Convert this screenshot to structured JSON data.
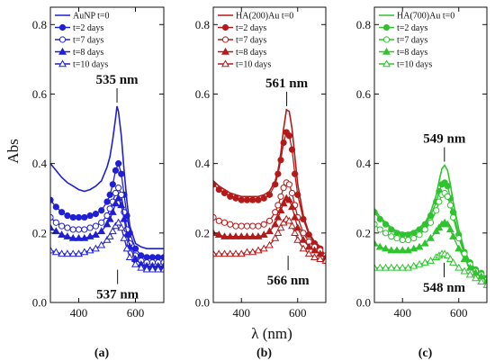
{
  "figure": {
    "ylabel": "Abs",
    "xlabel": "λ (nm)"
  },
  "chart_data": [
    {
      "type": "line",
      "panel_label": "(a)",
      "xlim": [
        300,
        700
      ],
      "ylim": [
        0.0,
        0.85
      ],
      "xticks": [
        400,
        600
      ],
      "yticks": [
        0.0,
        0.2,
        0.4,
        0.6,
        0.8
      ],
      "color": "#1f1fd6",
      "legend_position": "top-left",
      "annotations": [
        {
          "text": "535 nm",
          "x": 535,
          "y": 0.565,
          "position": "above"
        },
        {
          "text": "537 nm",
          "x": 537,
          "y": 0.11,
          "position": "below"
        }
      ],
      "series": [
        {
          "name": "AuNP t=0",
          "marker": "none",
          "x": [
            300,
            320,
            340,
            360,
            380,
            400,
            420,
            440,
            460,
            480,
            500,
            510,
            520,
            530,
            535,
            540,
            550,
            560,
            570,
            580,
            600,
            620,
            640,
            660,
            680,
            700
          ],
          "y": [
            0.4,
            0.38,
            0.36,
            0.345,
            0.335,
            0.325,
            0.32,
            0.325,
            0.335,
            0.35,
            0.39,
            0.42,
            0.47,
            0.53,
            0.565,
            0.55,
            0.48,
            0.38,
            0.29,
            0.22,
            0.17,
            0.16,
            0.155,
            0.155,
            0.155,
            0.155
          ]
        },
        {
          "name": "t=2 days",
          "marker": "circle-filled",
          "x": [
            300,
            320,
            340,
            360,
            380,
            400,
            420,
            440,
            460,
            480,
            500,
            510,
            520,
            530,
            540,
            550,
            560,
            570,
            580,
            600,
            620,
            640,
            660,
            680,
            700
          ],
          "y": [
            0.295,
            0.275,
            0.26,
            0.25,
            0.245,
            0.245,
            0.245,
            0.25,
            0.255,
            0.265,
            0.29,
            0.31,
            0.34,
            0.38,
            0.4,
            0.37,
            0.31,
            0.25,
            0.2,
            0.155,
            0.135,
            0.13,
            0.13,
            0.13,
            0.13
          ]
        },
        {
          "name": "t=7 days",
          "marker": "circle-open",
          "x": [
            300,
            320,
            340,
            360,
            380,
            400,
            420,
            440,
            460,
            480,
            500,
            510,
            520,
            530,
            540,
            550,
            560,
            570,
            580,
            600,
            620,
            640,
            660,
            680,
            700
          ],
          "y": [
            0.245,
            0.23,
            0.22,
            0.215,
            0.21,
            0.21,
            0.21,
            0.215,
            0.22,
            0.23,
            0.25,
            0.27,
            0.29,
            0.315,
            0.33,
            0.31,
            0.26,
            0.21,
            0.17,
            0.135,
            0.12,
            0.115,
            0.115,
            0.115,
            0.115
          ]
        },
        {
          "name": "t=8 days",
          "marker": "triangle-filled",
          "x": [
            300,
            320,
            340,
            360,
            380,
            400,
            420,
            440,
            460,
            480,
            500,
            510,
            520,
            530,
            540,
            550,
            560,
            570,
            580,
            600,
            620,
            640,
            660,
            680,
            700
          ],
          "y": [
            0.215,
            0.205,
            0.195,
            0.19,
            0.185,
            0.185,
            0.185,
            0.19,
            0.195,
            0.205,
            0.225,
            0.24,
            0.26,
            0.285,
            0.3,
            0.28,
            0.24,
            0.195,
            0.16,
            0.125,
            0.11,
            0.105,
            0.105,
            0.105,
            0.105
          ]
        },
        {
          "name": "t=10 days",
          "marker": "triangle-open",
          "x": [
            300,
            320,
            340,
            360,
            380,
            400,
            420,
            440,
            460,
            480,
            500,
            510,
            520,
            530,
            540,
            550,
            560,
            570,
            580,
            600,
            620,
            640,
            660,
            680,
            700
          ],
          "y": [
            0.15,
            0.145,
            0.14,
            0.14,
            0.14,
            0.14,
            0.145,
            0.15,
            0.155,
            0.165,
            0.18,
            0.19,
            0.205,
            0.22,
            0.23,
            0.215,
            0.185,
            0.155,
            0.13,
            0.11,
            0.1,
            0.095,
            0.095,
            0.095,
            0.095
          ]
        }
      ]
    },
    {
      "type": "line",
      "panel_label": "(b)",
      "xlim": [
        300,
        700
      ],
      "ylim": [
        0.0,
        0.85
      ],
      "xticks": [
        400,
        600
      ],
      "yticks": [
        0.0,
        0.2,
        0.4,
        0.6,
        0.8
      ],
      "color": "#b31b1b",
      "legend_position": "top-left",
      "annotations": [
        {
          "text": "561 nm",
          "x": 561,
          "y": 0.555,
          "position": "above"
        },
        {
          "text": "566 nm",
          "x": 566,
          "y": 0.15,
          "position": "below"
        }
      ],
      "series": [
        {
          "name": "HA(200)Au t=0",
          "marker": "none",
          "x": [
            300,
            320,
            340,
            360,
            380,
            400,
            420,
            440,
            460,
            480,
            500,
            520,
            530,
            540,
            550,
            560,
            570,
            580,
            590,
            600,
            620,
            640,
            660,
            680,
            700
          ],
          "y": [
            0.35,
            0.335,
            0.325,
            0.315,
            0.31,
            0.305,
            0.305,
            0.305,
            0.305,
            0.31,
            0.32,
            0.35,
            0.38,
            0.43,
            0.5,
            0.555,
            0.55,
            0.5,
            0.42,
            0.34,
            0.25,
            0.2,
            0.175,
            0.16,
            0.13
          ]
        },
        {
          "name": "t=2 days",
          "marker": "circle-filled",
          "x": [
            300,
            320,
            340,
            360,
            380,
            400,
            420,
            440,
            460,
            480,
            500,
            520,
            530,
            540,
            550,
            560,
            570,
            580,
            590,
            600,
            620,
            640,
            660,
            680,
            700
          ],
          "y": [
            0.34,
            0.325,
            0.315,
            0.305,
            0.3,
            0.295,
            0.295,
            0.295,
            0.295,
            0.3,
            0.31,
            0.34,
            0.37,
            0.41,
            0.46,
            0.49,
            0.48,
            0.44,
            0.37,
            0.31,
            0.24,
            0.195,
            0.17,
            0.155,
            0.12
          ]
        },
        {
          "name": "t=7 days",
          "marker": "circle-open",
          "x": [
            300,
            320,
            340,
            360,
            380,
            400,
            420,
            440,
            460,
            480,
            500,
            520,
            530,
            540,
            550,
            560,
            570,
            580,
            590,
            600,
            620,
            640,
            660,
            680,
            700
          ],
          "y": [
            0.245,
            0.235,
            0.23,
            0.225,
            0.22,
            0.22,
            0.22,
            0.22,
            0.22,
            0.225,
            0.235,
            0.26,
            0.28,
            0.305,
            0.33,
            0.345,
            0.34,
            0.315,
            0.28,
            0.245,
            0.2,
            0.175,
            0.16,
            0.15,
            0.135
          ]
        },
        {
          "name": "t=8 days",
          "marker": "triangle-filled",
          "x": [
            300,
            320,
            340,
            360,
            380,
            400,
            420,
            440,
            460,
            480,
            500,
            520,
            530,
            540,
            550,
            560,
            570,
            580,
            590,
            600,
            620,
            640,
            660,
            680,
            700
          ],
          "y": [
            0.2,
            0.195,
            0.19,
            0.19,
            0.19,
            0.19,
            0.19,
            0.19,
            0.19,
            0.195,
            0.205,
            0.225,
            0.245,
            0.265,
            0.285,
            0.3,
            0.295,
            0.275,
            0.245,
            0.215,
            0.18,
            0.16,
            0.15,
            0.14,
            0.13
          ]
        },
        {
          "name": "t=10 days",
          "marker": "triangle-open",
          "x": [
            300,
            320,
            340,
            360,
            380,
            400,
            420,
            440,
            460,
            480,
            500,
            520,
            530,
            540,
            550,
            560,
            570,
            580,
            590,
            600,
            620,
            640,
            660,
            680,
            700
          ],
          "y": [
            0.14,
            0.14,
            0.14,
            0.14,
            0.14,
            0.14,
            0.145,
            0.145,
            0.15,
            0.155,
            0.165,
            0.185,
            0.2,
            0.215,
            0.23,
            0.24,
            0.235,
            0.22,
            0.2,
            0.18,
            0.155,
            0.14,
            0.13,
            0.125,
            0.12
          ]
        }
      ]
    },
    {
      "type": "line",
      "panel_label": "(c)",
      "xlim": [
        300,
        700
      ],
      "ylim": [
        0.0,
        0.85
      ],
      "xticks": [
        400,
        600
      ],
      "yticks": [
        0.0,
        0.2,
        0.4,
        0.6,
        0.8
      ],
      "color": "#2fc42f",
      "legend_position": "top-left",
      "annotations": [
        {
          "text": "549 nm",
          "x": 549,
          "y": 0.395,
          "position": "above"
        },
        {
          "text": "548 nm",
          "x": 548,
          "y": 0.13,
          "position": "below"
        }
      ],
      "series": [
        {
          "name": "HA(700)Au t=0",
          "marker": "none",
          "x": [
            300,
            320,
            340,
            360,
            380,
            400,
            420,
            440,
            460,
            480,
            500,
            520,
            530,
            540,
            550,
            560,
            570,
            580,
            600,
            620,
            640,
            660,
            680,
            700
          ],
          "y": [
            0.27,
            0.245,
            0.23,
            0.215,
            0.205,
            0.2,
            0.2,
            0.205,
            0.215,
            0.23,
            0.26,
            0.31,
            0.35,
            0.385,
            0.395,
            0.38,
            0.34,
            0.29,
            0.21,
            0.15,
            0.115,
            0.095,
            0.085,
            0.07
          ]
        },
        {
          "name": "t=2 days",
          "marker": "circle-filled",
          "x": [
            300,
            320,
            340,
            360,
            380,
            400,
            420,
            440,
            460,
            480,
            500,
            520,
            530,
            540,
            550,
            560,
            570,
            580,
            600,
            620,
            640,
            660,
            680,
            700
          ],
          "y": [
            0.26,
            0.24,
            0.225,
            0.21,
            0.2,
            0.195,
            0.195,
            0.2,
            0.21,
            0.225,
            0.25,
            0.29,
            0.32,
            0.34,
            0.345,
            0.335,
            0.3,
            0.26,
            0.195,
            0.145,
            0.115,
            0.095,
            0.085,
            0.07
          ]
        },
        {
          "name": "t=7 days",
          "marker": "circle-open",
          "x": [
            300,
            320,
            340,
            360,
            380,
            400,
            420,
            440,
            460,
            480,
            500,
            520,
            530,
            540,
            550,
            560,
            570,
            580,
            600,
            620,
            640,
            660,
            680,
            700
          ],
          "y": [
            0.225,
            0.21,
            0.2,
            0.19,
            0.185,
            0.18,
            0.18,
            0.185,
            0.195,
            0.21,
            0.23,
            0.265,
            0.29,
            0.31,
            0.315,
            0.305,
            0.28,
            0.245,
            0.185,
            0.14,
            0.11,
            0.09,
            0.08,
            0.065
          ]
        },
        {
          "name": "t=8 days",
          "marker": "triangle-filled",
          "x": [
            300,
            320,
            340,
            360,
            380,
            400,
            420,
            440,
            460,
            480,
            500,
            520,
            530,
            540,
            550,
            560,
            570,
            580,
            600,
            620,
            640,
            660,
            680,
            700
          ],
          "y": [
            0.17,
            0.16,
            0.155,
            0.15,
            0.15,
            0.15,
            0.15,
            0.155,
            0.16,
            0.17,
            0.185,
            0.205,
            0.215,
            0.225,
            0.23,
            0.225,
            0.21,
            0.19,
            0.155,
            0.125,
            0.1,
            0.085,
            0.075,
            0.06
          ]
        },
        {
          "name": "t=10 days",
          "marker": "triangle-open",
          "x": [
            300,
            320,
            340,
            360,
            380,
            400,
            420,
            440,
            460,
            480,
            500,
            520,
            530,
            540,
            550,
            560,
            570,
            580,
            600,
            620,
            640,
            660,
            680,
            700
          ],
          "y": [
            0.1,
            0.1,
            0.1,
            0.1,
            0.1,
            0.1,
            0.1,
            0.105,
            0.11,
            0.115,
            0.12,
            0.13,
            0.135,
            0.14,
            0.14,
            0.135,
            0.125,
            0.115,
            0.1,
            0.09,
            0.08,
            0.07,
            0.06,
            0.05
          ]
        }
      ]
    }
  ]
}
